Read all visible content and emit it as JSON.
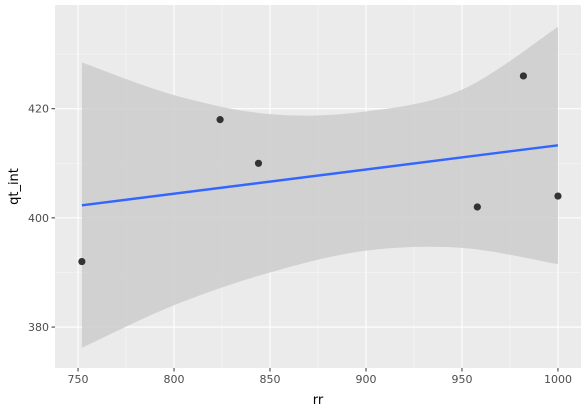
{
  "chart_data": {
    "type": "scatter",
    "xlabel": "rr",
    "ylabel": "qt_int",
    "xlim": [
      738,
      1012
    ],
    "ylim": [
      372.5,
      439
    ],
    "x_ticks": [
      750,
      800,
      850,
      900,
      950,
      1000
    ],
    "y_ticks": [
      380,
      400,
      420
    ],
    "grid": true,
    "points": [
      {
        "x": 752,
        "y": 392
      },
      {
        "x": 824,
        "y": 418
      },
      {
        "x": 844,
        "y": 410
      },
      {
        "x": 958,
        "y": 402
      },
      {
        "x": 982,
        "y": 426
      },
      {
        "x": 1000,
        "y": 404
      }
    ],
    "smooth": {
      "method": "lm",
      "line": [
        {
          "x": 752,
          "y": 402.3
        },
        {
          "x": 1000,
          "y": 413.3
        }
      ],
      "band_upper": [
        {
          "x": 752,
          "y": 428.5
        },
        {
          "x": 800,
          "y": 422.5
        },
        {
          "x": 850,
          "y": 419.0
        },
        {
          "x": 900,
          "y": 419.5
        },
        {
          "x": 950,
          "y": 423.5
        },
        {
          "x": 1000,
          "y": 435.0
        }
      ],
      "band_lower": [
        {
          "x": 752,
          "y": 376.2
        },
        {
          "x": 800,
          "y": 384.0
        },
        {
          "x": 850,
          "y": 390.0
        },
        {
          "x": 900,
          "y": 394.0
        },
        {
          "x": 950,
          "y": 394.5
        },
        {
          "x": 1000,
          "y": 391.5
        }
      ]
    },
    "colors": {
      "panel": "#ebebeb",
      "grid_major": "#ffffff",
      "band": "#cccccc",
      "line": "#3366ff",
      "points": "#333333"
    }
  }
}
